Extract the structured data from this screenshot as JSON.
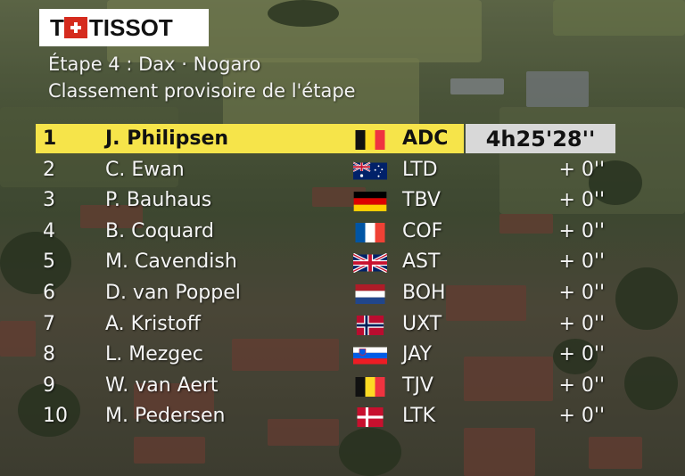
{
  "broadcast": {
    "sponsor": "TISSOT",
    "stage_title": "Étape 4 : Dax · Nogaro",
    "subtitle": "Classement provisoire de l'étape"
  },
  "rankings": [
    {
      "pos": "1",
      "rider": "J. Philipsen",
      "flag": "belgium",
      "team": "ADC",
      "time": "4h25'28''"
    },
    {
      "pos": "2",
      "rider": "C. Ewan",
      "flag": "australia",
      "team": "LTD",
      "time": "+ 0''"
    },
    {
      "pos": "3",
      "rider": "P. Bauhaus",
      "flag": "germany",
      "team": "TBV",
      "time": "+ 0''"
    },
    {
      "pos": "4",
      "rider": "B. Coquard",
      "flag": "france",
      "team": "COF",
      "time": "+ 0''"
    },
    {
      "pos": "5",
      "rider": "M. Cavendish",
      "flag": "united-kingdom",
      "team": "AST",
      "time": "+ 0''"
    },
    {
      "pos": "6",
      "rider": "D. van Poppel",
      "flag": "netherlands",
      "team": "BOH",
      "time": "+ 0''"
    },
    {
      "pos": "7",
      "rider": "A. Kristoff",
      "flag": "norway",
      "team": "UXT",
      "time": "+ 0''"
    },
    {
      "pos": "8",
      "rider": "L. Mezgec",
      "flag": "slovenia",
      "team": "JAY",
      "time": "+ 0''"
    },
    {
      "pos": "9",
      "rider": "W. van Aert",
      "flag": "belgium",
      "team": "TJV",
      "time": "+ 0''"
    },
    {
      "pos": "10",
      "rider": "M. Pedersen",
      "flag": "denmark",
      "team": "LTK",
      "time": "+ 0''"
    }
  ],
  "colors": {
    "leader_bar": "#f6e44a",
    "time_box": "#d8d8d8",
    "text": "#f5f5f5",
    "tissot_red": "#d52b1e"
  }
}
